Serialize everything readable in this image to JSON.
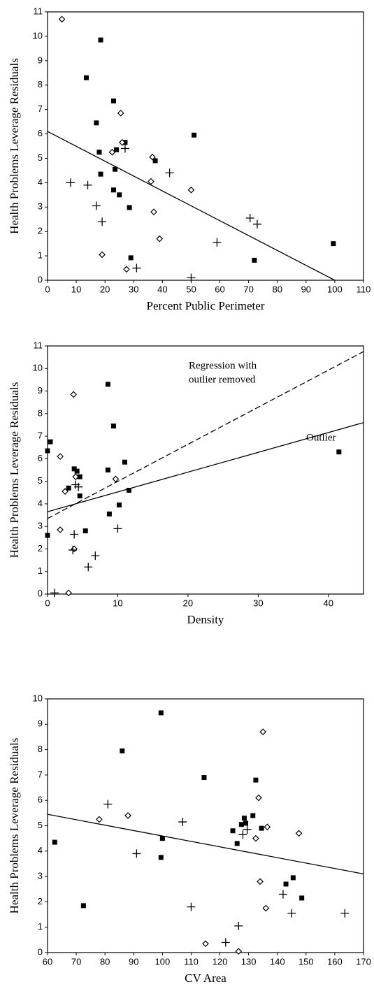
{
  "chart_data": [
    {
      "type": "scatter",
      "xlabel": "Percent Public Perimeter",
      "ylabel": "Health Problems Leverage Residuals",
      "xlim": [
        0,
        110
      ],
      "ylim": [
        0,
        11
      ],
      "xticks": [
        0,
        10,
        20,
        30,
        40,
        50,
        60,
        70,
        80,
        90,
        100,
        110
      ],
      "yticks": [
        0,
        1,
        2,
        3,
        4,
        5,
        6,
        7,
        8,
        9,
        10,
        11
      ],
      "series": [
        {
          "marker": "square",
          "color": "#000000",
          "x": [
            18.5,
            13.5,
            23,
            17,
            51,
            18,
            27,
            37.5,
            23.5,
            18.5,
            23,
            25,
            28.5,
            29,
            72,
            99.5,
            24
          ],
          "values": [
            9.85,
            8.3,
            7.35,
            6.45,
            5.95,
            5.25,
            5.65,
            4.9,
            4.55,
            4.35,
            3.7,
            3.5,
            2.98,
            0.92,
            0.82,
            1.5,
            5.35
          ]
        },
        {
          "marker": "diamond",
          "color": "#000000",
          "x": [
            5,
            25.5,
            22.5,
            26,
            36.5,
            36,
            50,
            37,
            39,
            19,
            27.5
          ],
          "values": [
            10.7,
            6.85,
            5.25,
            5.65,
            5.05,
            4.05,
            3.7,
            2.8,
            1.7,
            1.05,
            0.45
          ]
        },
        {
          "marker": "plus",
          "color": "#000000",
          "x": [
            8,
            14,
            27,
            42.5,
            17,
            19,
            31,
            50,
            59,
            70.5,
            73
          ],
          "values": [
            4,
            3.9,
            5.4,
            4.4,
            3.05,
            2.4,
            0.5,
            0.1,
            1.55,
            2.55,
            2.3
          ]
        }
      ],
      "lines": [
        {
          "dash": false,
          "x": [
            0,
            100
          ],
          "values": [
            6.1,
            0
          ]
        }
      ]
    },
    {
      "type": "scatter",
      "xlabel": "Density",
      "ylabel": "Health Problems Leverage Residuals",
      "xlim": [
        0,
        45
      ],
      "ylim": [
        0,
        11
      ],
      "xticks": [
        0,
        10,
        20,
        30,
        40
      ],
      "yticks": [
        0,
        1,
        2,
        3,
        4,
        5,
        6,
        7,
        8,
        9,
        10,
        11
      ],
      "annotations": [
        [
          "Regression with",
          "outlier removed"
        ],
        [
          "Outlier"
        ]
      ],
      "series": [
        {
          "marker": "square",
          "color": "#000000",
          "x": [
            0,
            0.4,
            0,
            8.6,
            9.4,
            11,
            8.6,
            3.8,
            4.2,
            3,
            4.6,
            4.6,
            11.6,
            10.2,
            8.8,
            5.4,
            41.5
          ],
          "values": [
            6.35,
            6.75,
            2.6,
            9.3,
            7.45,
            5.85,
            5.5,
            5.55,
            5.45,
            4.7,
            5.2,
            4.35,
            4.6,
            3.95,
            3.55,
            2.8,
            6.3
          ]
        },
        {
          "marker": "diamond",
          "color": "#000000",
          "x": [
            3.7,
            1.8,
            9.7,
            4,
            2.5,
            1.8,
            3.8,
            3
          ],
          "values": [
            8.85,
            6.1,
            5.1,
            5.2,
            4.55,
            2.85,
            2,
            0.05
          ]
        },
        {
          "marker": "plus",
          "color": "#000000",
          "x": [
            4,
            4.4,
            3.8,
            3.6,
            10,
            6.8,
            5.8,
            1
          ],
          "values": [
            4.85,
            4.75,
            2.65,
            1.95,
            2.9,
            1.7,
            1.2,
            0.05
          ]
        }
      ],
      "lines": [
        {
          "dash": false,
          "x": [
            0,
            45
          ],
          "values": [
            3.65,
            7.6
          ]
        },
        {
          "dash": true,
          "x": [
            0,
            45
          ],
          "values": [
            3.35,
            10.75
          ]
        }
      ]
    },
    {
      "type": "scatter",
      "xlabel": "CV Area",
      "ylabel": "Health Problems Leverage Residuals",
      "xlim": [
        60,
        170
      ],
      "ylim": [
        0,
        10
      ],
      "xticks": [
        60,
        70,
        80,
        90,
        100,
        110,
        120,
        130,
        140,
        150,
        160,
        170
      ],
      "yticks": [
        0,
        1,
        2,
        3,
        4,
        5,
        6,
        7,
        8,
        9,
        10
      ],
      "series": [
        {
          "marker": "square",
          "color": "#000000",
          "x": [
            62.5,
            72.5,
            86,
            99.5,
            100,
            99.5,
            114.5,
            124.5,
            126,
            127.5,
            128.5,
            129,
            131.5,
            132.5,
            134.5,
            143,
            145.5,
            148.5
          ],
          "values": [
            4.35,
            1.85,
            7.95,
            9.45,
            4.5,
            3.75,
            6.9,
            4.8,
            4.3,
            5.05,
            5.3,
            5.1,
            5.4,
            6.8,
            4.9,
            2.7,
            2.95,
            2.15
          ]
        },
        {
          "marker": "diamond",
          "color": "#000000",
          "x": [
            78,
            88,
            133.5,
            135,
            132.5,
            136.5,
            134,
            136,
            147.5,
            115,
            126.5
          ],
          "values": [
            5.25,
            5.4,
            6.1,
            8.7,
            4.5,
            4.95,
            2.8,
            1.75,
            4.7,
            0.35,
            0.05
          ]
        },
        {
          "marker": "plus",
          "color": "#000000",
          "x": [
            81,
            107,
            91,
            110,
            128,
            129.5,
            142,
            145,
            163.5,
            126.5,
            122
          ],
          "values": [
            5.85,
            5.15,
            3.9,
            1.8,
            4.65,
            4.85,
            2.3,
            1.55,
            1.55,
            1.05,
            0.4
          ]
        }
      ],
      "lines": [
        {
          "dash": false,
          "x": [
            60,
            170
          ],
          "values": [
            5.45,
            3.1
          ]
        }
      ]
    }
  ]
}
